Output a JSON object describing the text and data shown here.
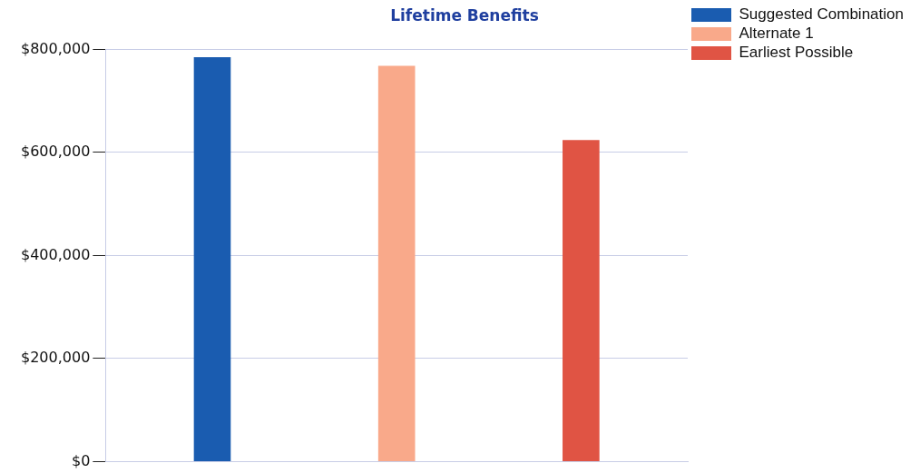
{
  "chart_data": {
    "type": "bar",
    "title": "Lifetime Benefits",
    "categories": [
      null
    ],
    "series": [
      {
        "name": "Suggested Combination",
        "color": "#1a5cb0",
        "values": [
          785000
        ]
      },
      {
        "name": "Alternate 1",
        "color": "#f9a98a",
        "values": [
          768000
        ]
      },
      {
        "name": "Earliest Possible",
        "color": "#e05444",
        "values": [
          624000
        ]
      }
    ],
    "ylim": [
      0,
      800000
    ],
    "yticks": [
      {
        "value": 0,
        "label": "$0"
      },
      {
        "value": 200000,
        "label": "$200,000"
      },
      {
        "value": 400000,
        "label": "$400,000"
      },
      {
        "value": 600000,
        "label": "$600,000"
      },
      {
        "value": 800000,
        "label": "$800,000"
      }
    ],
    "grid": "y",
    "legend": "top right"
  }
}
